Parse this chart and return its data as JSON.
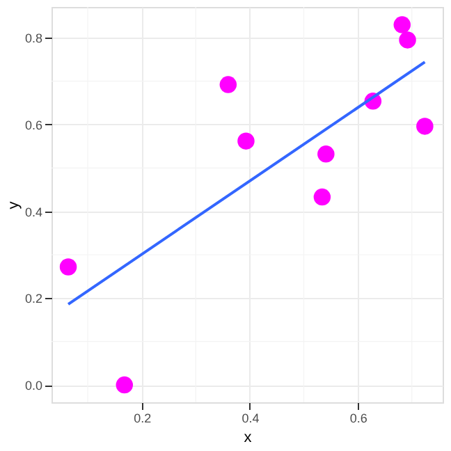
{
  "chart_data": {
    "type": "scatter",
    "xlabel": "x",
    "ylabel": "y",
    "xlim": [
      0.033,
      0.757
    ],
    "ylim": [
      -0.04,
      0.871
    ],
    "xticks": [
      {
        "value": 0.1,
        "label": null
      },
      {
        "value": 0.2,
        "label": "0.2"
      },
      {
        "value": 0.3,
        "label": null
      },
      {
        "value": 0.4,
        "label": "0.4"
      },
      {
        "value": 0.5,
        "label": null
      },
      {
        "value": 0.6,
        "label": "0.6"
      },
      {
        "value": 0.7,
        "label": null
      }
    ],
    "yticks": [
      {
        "value": 0,
        "label": "0.0"
      },
      {
        "value": 0.1,
        "label": null
      },
      {
        "value": 0.2,
        "label": "0.2"
      },
      {
        "value": 0.3,
        "label": null
      },
      {
        "value": 0.4,
        "label": "0.4"
      },
      {
        "value": 0.5,
        "label": null
      },
      {
        "value": 0.6,
        "label": "0.6"
      },
      {
        "value": 0.7,
        "label": null
      },
      {
        "value": 0.8,
        "label": "0.8"
      }
    ],
    "grid": true,
    "series": [
      {
        "color": "#ff00ff",
        "marker": "circle",
        "x": [
          0.064,
          0.168,
          0.36,
          0.393,
          0.534,
          0.541,
          0.628,
          0.682,
          0.692,
          0.724
        ],
        "values": [
          0.272,
          0.0,
          0.692,
          0.562,
          0.433,
          0.532,
          0.654,
          0.83,
          0.795,
          0.596
        ]
      },
      {
        "type": "line",
        "color": "#3366ff",
        "line_style": "solid",
        "x": [
          0.064,
          0.724
        ],
        "values": [
          0.186,
          0.744
        ]
      }
    ]
  }
}
